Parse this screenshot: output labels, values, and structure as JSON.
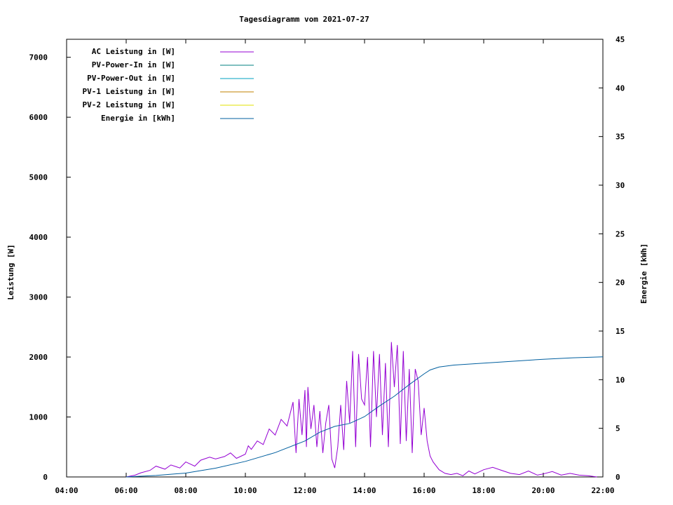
{
  "chart_data": {
    "type": "line",
    "title": "Tagesdiagramm vom 2021-07-27",
    "xlabel": "",
    "ylabel": "Leistung [W]",
    "y2label": "Energie [kWh]",
    "xlim": [
      4,
      22
    ],
    "ylim": [
      0,
      7300
    ],
    "y2lim": [
      0,
      45
    ],
    "x_ticks": [
      "04:00",
      "06:00",
      "08:00",
      "10:00",
      "12:00",
      "14:00",
      "16:00",
      "18:00",
      "20:00",
      "22:00"
    ],
    "y_ticks": [
      0,
      1000,
      2000,
      3000,
      4000,
      5000,
      6000,
      7000
    ],
    "y2_ticks": [
      0,
      5,
      10,
      15,
      20,
      25,
      30,
      35,
      40,
      45
    ],
    "grid": false,
    "legend_position": "top-left",
    "series": [
      {
        "name": "AC Leistung in [W]",
        "color": "#9400d3",
        "axis": "left",
        "x": [
          6.0,
          6.3,
          6.5,
          6.8,
          7.0,
          7.3,
          7.5,
          7.8,
          8.0,
          8.3,
          8.5,
          8.8,
          9.0,
          9.3,
          9.5,
          9.7,
          10.0,
          10.1,
          10.2,
          10.4,
          10.6,
          10.8,
          11.0,
          11.2,
          11.4,
          11.6,
          11.7,
          11.8,
          11.9,
          12.0,
          12.05,
          12.1,
          12.2,
          12.3,
          12.4,
          12.5,
          12.6,
          12.7,
          12.8,
          12.9,
          13.0,
          13.1,
          13.2,
          13.3,
          13.4,
          13.5,
          13.6,
          13.7,
          13.8,
          13.9,
          14.0,
          14.1,
          14.2,
          14.3,
          14.4,
          14.5,
          14.6,
          14.7,
          14.8,
          14.9,
          15.0,
          15.1,
          15.2,
          15.3,
          15.4,
          15.5,
          15.6,
          15.7,
          15.8,
          15.9,
          16.0,
          16.1,
          16.2,
          16.3,
          16.5,
          16.7,
          16.9,
          17.1,
          17.3,
          17.5,
          17.7,
          18.0,
          18.3,
          18.6,
          18.9,
          19.2,
          19.5,
          19.8,
          20.0,
          20.3,
          20.6,
          20.9,
          21.2,
          21.5,
          21.8
        ],
        "y": [
          0,
          30,
          70,
          110,
          180,
          130,
          200,
          150,
          250,
          180,
          280,
          330,
          300,
          340,
          400,
          310,
          380,
          520,
          460,
          600,
          540,
          800,
          700,
          960,
          850,
          1250,
          400,
          1300,
          700,
          1450,
          500,
          1500,
          800,
          1200,
          500,
          1100,
          400,
          900,
          1200,
          300,
          150,
          500,
          1200,
          450,
          1600,
          900,
          2100,
          500,
          2050,
          1300,
          1200,
          2000,
          500,
          2100,
          1000,
          2050,
          700,
          1900,
          500,
          2250,
          1500,
          2200,
          550,
          2100,
          600,
          1800,
          400,
          1800,
          1600,
          700,
          1150,
          600,
          350,
          250,
          120,
          60,
          40,
          60,
          20,
          100,
          50,
          120,
          160,
          110,
          60,
          40,
          100,
          30,
          50,
          90,
          30,
          60,
          30,
          20,
          0
        ]
      },
      {
        "name": "PV-Power-In in [W]",
        "color": "#008080",
        "axis": "left",
        "x": [],
        "y": []
      },
      {
        "name": "PV-Power-Out in [W]",
        "color": "#00a0c0",
        "axis": "left",
        "x": [],
        "y": []
      },
      {
        "name": "PV-1 Leistung in [W]",
        "color": "#c08000",
        "axis": "left",
        "x": [],
        "y": []
      },
      {
        "name": "PV-2 Leistung in [W]",
        "color": "#e0e000",
        "axis": "left",
        "x": [],
        "y": []
      },
      {
        "name": "Energie in [kWh]",
        "color": "#005f9f",
        "axis": "right",
        "x": [
          6.0,
          7.0,
          8.0,
          9.0,
          10.0,
          11.0,
          12.0,
          12.5,
          13.0,
          13.5,
          14.0,
          14.5,
          15.0,
          15.5,
          16.0,
          16.2,
          16.5,
          17.0,
          18.0,
          19.0,
          20.0,
          21.0,
          22.0
        ],
        "y": [
          0,
          0.15,
          0.4,
          0.9,
          1.6,
          2.5,
          3.7,
          4.6,
          5.2,
          5.5,
          6.2,
          7.3,
          8.3,
          9.5,
          10.6,
          11.0,
          11.3,
          11.5,
          11.7,
          11.9,
          12.1,
          12.25,
          12.35
        ]
      }
    ]
  }
}
